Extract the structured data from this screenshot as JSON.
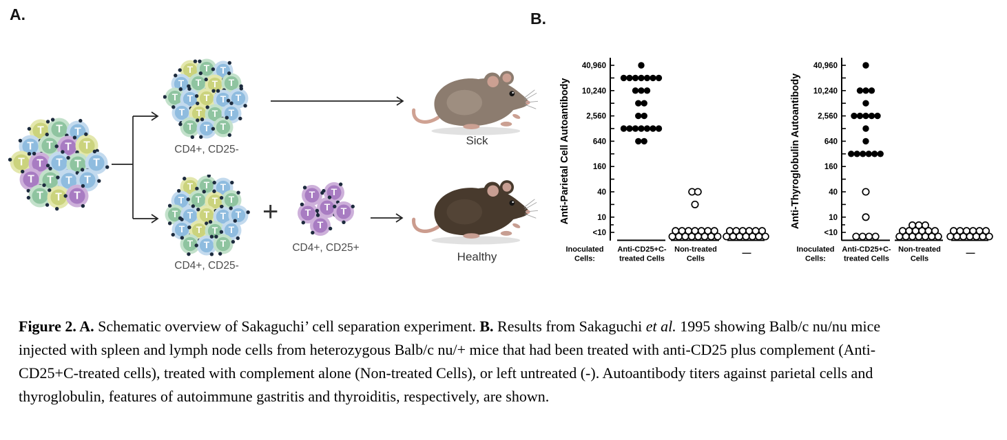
{
  "panel_a": {
    "label": "A.",
    "cell_letter": "T",
    "top_cluster_label": "CD4+, CD25-",
    "bottom_cluster_label": "CD4+, CD25-",
    "treg_cluster_label": "CD4+, CD25+",
    "plus_sign": "+",
    "sick_label": "Sick",
    "healthy_label": "Healthy"
  },
  "panel_b": {
    "label": "B."
  },
  "cell_colors": {
    "green": {
      "main": "#8fc4a0",
      "light": "#c3e1cb"
    },
    "blue": {
      "main": "#8fbcdf",
      "light": "#c3daee"
    },
    "yellow": {
      "main": "#cbd37d",
      "light": "#e3e7ad"
    },
    "purple": {
      "main": "#a87cc2",
      "light": "#cdb0da"
    },
    "receptor": "#1d2b3e",
    "letter": "#ffffff"
  },
  "mouse_colors": {
    "sick": {
      "fur": "#8c7c6f",
      "patch": "#b0a091",
      "ear": "#cba092",
      "tail": "#cfa293"
    },
    "healthy": {
      "fur": "#483a2d",
      "patch": "#5e4e3f",
      "ear": "#c79e92",
      "tail": "#cb9c8e"
    }
  },
  "chart_data": [
    {
      "type": "scatter",
      "ylabel": "Anti-Parietal Cell Autoantibody",
      "ytick_labels": [
        "40,960",
        "10,240",
        "2,560",
        "640",
        "160",
        "40",
        "10",
        "<10"
      ],
      "xlabel_lines": [
        "Inoculated",
        "Cells:"
      ],
      "categories": [
        [
          "Anti-CD25+C-",
          "treated Cells"
        ],
        [
          "Non-treated",
          "Cells"
        ],
        [
          "—"
        ]
      ],
      "series": [
        {
          "col": 0,
          "marker": "filled",
          "points": {
            "40960": 1,
            "20480": 7,
            "10240": 3,
            "5120": 2,
            "2560": 2,
            "1280": 7,
            "640": 2
          }
        },
        {
          "col": 1,
          "marker": "open",
          "points": {
            "40": 2,
            "20": 1,
            "<10": [
              8,
              7
            ]
          }
        },
        {
          "col": 2,
          "marker": "open",
          "points": {
            "<10": [
              7,
              6
            ]
          }
        }
      ]
    },
    {
      "type": "scatter",
      "ylabel": "Anti-Thyroglobulin Autoantibody",
      "ytick_labels": [
        "40,960",
        "10,240",
        "2,560",
        "640",
        "160",
        "40",
        "10",
        "<10"
      ],
      "xlabel_lines": [
        "Inoculated",
        "Cells:"
      ],
      "categories": [
        [
          "Anti-CD25+C-",
          "treated Cells"
        ],
        [
          "Non-treated",
          "Cells"
        ],
        [
          "—"
        ]
      ],
      "series": [
        {
          "col": 0,
          "marker": "filled",
          "points": {
            "40960": 1,
            "10240": 3,
            "5120": 1,
            "2560": 5,
            "1280": 1,
            "640": 1,
            "320": 6
          }
        },
        {
          "col": 0,
          "marker": "open",
          "points": {
            "40": 1,
            "10": 1,
            "<10": [
              4
            ]
          }
        },
        {
          "col": 1,
          "marker": "open",
          "points": {
            "<10": [
              7,
              6,
              3
            ]
          }
        },
        {
          "col": 2,
          "marker": "open",
          "points": {
            "<10": [
              7,
              6
            ]
          }
        }
      ]
    }
  ],
  "caption": {
    "segments": [
      {
        "text": "Figure 2. A. ",
        "bold": true
      },
      {
        "text": "Schematic overview of Sakaguchi’ cell separation experiment. "
      },
      {
        "text": "B. ",
        "bold": true
      },
      {
        "text": "Results from Sakaguchi "
      },
      {
        "text": "et al.",
        "italic": true
      },
      {
        "text": " 1995 showing Balb/c nu/nu mice injected with spleen and lymph node cells from heterozygous Balb/c nu/+ mice that had been treated with anti-CD25 plus complement (Anti-CD25+C-treated cells), treated with complement alone (Non-treated Cells), or left untreated (-). Autoantibody titers against parietal cells and thyroglobulin, features of autoimmune gastritis and thyroiditis, respectively, are shown."
      }
    ]
  }
}
